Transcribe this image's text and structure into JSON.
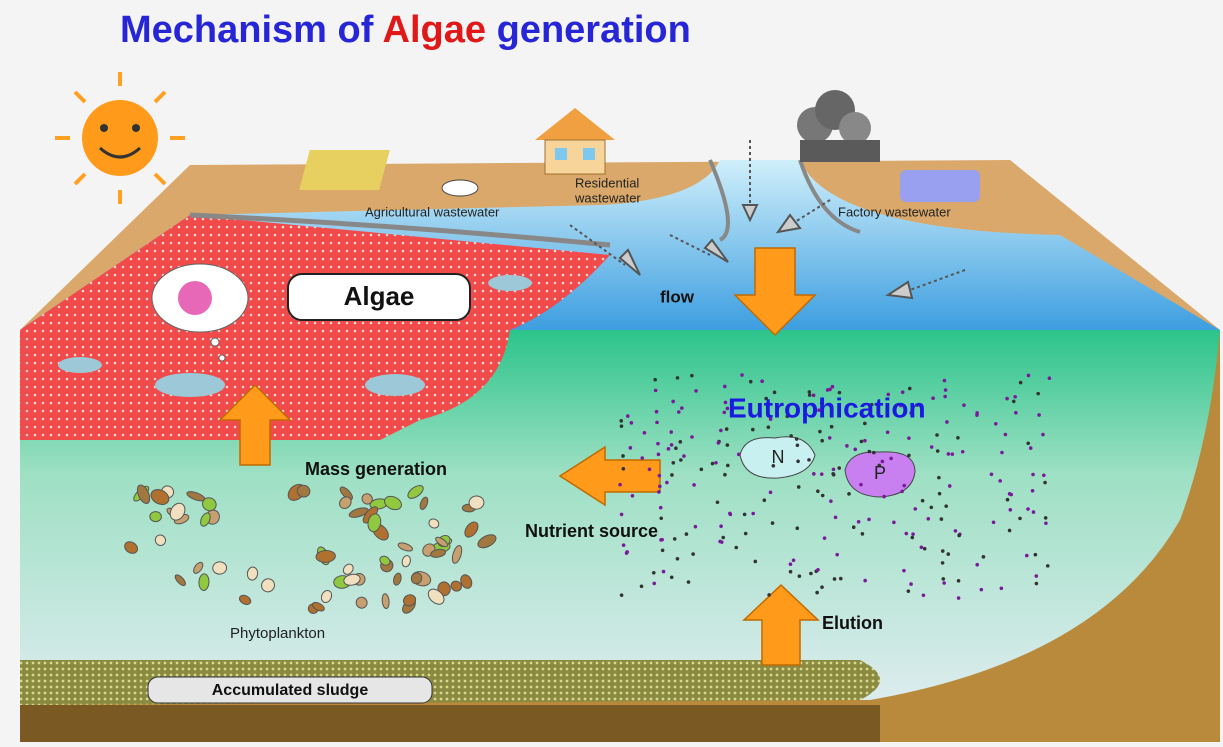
{
  "header": {
    "title": {
      "before": "Mechanism of",
      "highlight": "Algae",
      "after": "generation"
    }
  },
  "surface_labels": {
    "agricultural": "Agricultural wastewater",
    "residential_1": "Residential",
    "residential_2": "wastewater",
    "factory": "Factory wastewater",
    "algae": "Algae",
    "flow": "flow"
  },
  "cross_section": {
    "eutrophication": "Eutrophication",
    "nitrogen": "N",
    "phosphorus": "P",
    "mass_generation": "Mass generation",
    "nutrient_source": "Nutrient source",
    "phytoplankton": "Phytoplankton",
    "elution": "Elution",
    "sludge": "Accumulated sludge"
  }
}
